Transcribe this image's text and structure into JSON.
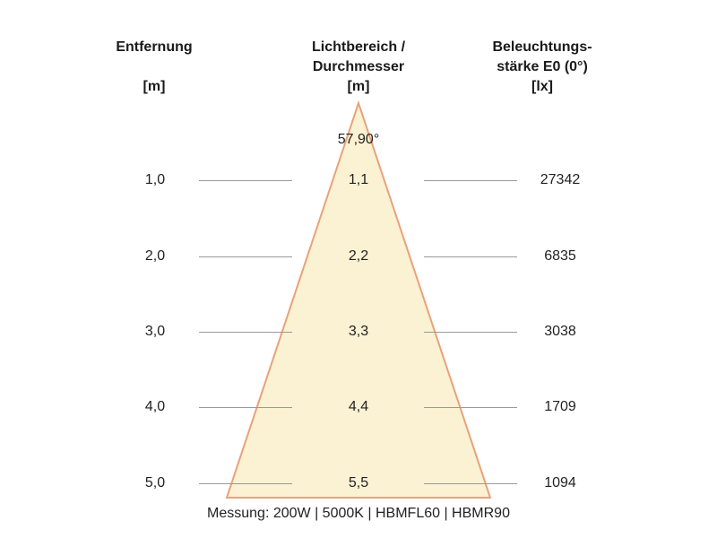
{
  "headers": {
    "distance": [
      "Entfernung",
      "",
      "[m]"
    ],
    "diameter": [
      "Lichtbereich /",
      "Durchmesser",
      "[m]"
    ],
    "illuminance": [
      "Beleuchtungs-",
      "stärke E0 (0°)",
      "[lx]"
    ]
  },
  "beam_angle": "57,90°",
  "rows": [
    {
      "distance": "1,0",
      "diameter": "1,1",
      "illuminance": "27342"
    },
    {
      "distance": "2,0",
      "diameter": "2,2",
      "illuminance": "6835"
    },
    {
      "distance": "3,0",
      "diameter": "3,3",
      "illuminance": "3038"
    },
    {
      "distance": "4,0",
      "diameter": "4,4",
      "illuminance": "1709"
    },
    {
      "distance": "5,0",
      "diameter": "5,5",
      "illuminance": "1094"
    }
  ],
  "footnote": "Messung: 200W | 5000K | HBMFL60 | HBMR90",
  "colors": {
    "cone_fill": "#fbf1d3",
    "cone_edge": "#e8a27a",
    "guide_line": "#9a9a9a"
  }
}
